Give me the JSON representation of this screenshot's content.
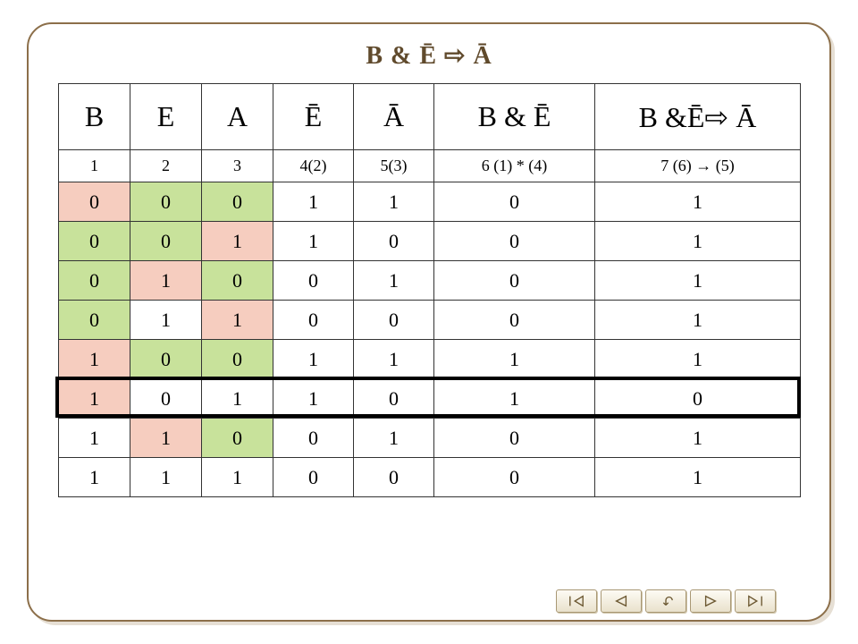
{
  "title": "B & Ē ⇨ Ā",
  "columns": {
    "headers": [
      "B",
      "E",
      "A",
      "Ē",
      "Ā",
      "B & Ē",
      "B &Ē⇨ Ā"
    ],
    "formulas": [
      "1",
      "2",
      "3",
      "4(2)",
      "5(3)",
      "6 (1) * (4)",
      "7 (6) → (5)"
    ]
  },
  "colors": {
    "frame_border": "#8c6f4a",
    "title_color": "#604a2c",
    "green": "#c8e29b",
    "red": "#f6cdbf",
    "grid": "#333333",
    "highlight_border": "#000000",
    "nav_fill": "#e9e1cc",
    "nav_border": "#a99875"
  },
  "rows": [
    {
      "cells": [
        "0",
        "0",
        "0",
        "1",
        "1",
        "0",
        "1"
      ],
      "hl": [
        "red",
        "green",
        "green",
        "",
        "",
        "",
        ""
      ]
    },
    {
      "cells": [
        "0",
        "0",
        "1",
        "1",
        "0",
        "0",
        "1"
      ],
      "hl": [
        "green",
        "green",
        "red",
        "",
        "",
        "",
        ""
      ]
    },
    {
      "cells": [
        "0",
        "1",
        "0",
        "0",
        "1",
        "0",
        "1"
      ],
      "hl": [
        "green",
        "red",
        "green",
        "",
        "",
        "",
        ""
      ]
    },
    {
      "cells": [
        "0",
        "1",
        "1",
        "0",
        "0",
        "0",
        "1"
      ],
      "hl": [
        "green",
        "",
        "red",
        "",
        "",
        "",
        ""
      ]
    },
    {
      "cells": [
        "1",
        "0",
        "0",
        "1",
        "1",
        "1",
        "1"
      ],
      "hl": [
        "red",
        "green",
        "green",
        "",
        "",
        "",
        ""
      ]
    },
    {
      "cells": [
        "1",
        "0",
        "1",
        "1",
        "0",
        "1",
        "0"
      ],
      "hl": [
        "red",
        "",
        "",
        "",
        "",
        "",
        ""
      ],
      "box": true
    },
    {
      "cells": [
        "1",
        "1",
        "0",
        "0",
        "1",
        "0",
        "1"
      ],
      "hl": [
        "",
        "red",
        "green",
        "",
        "",
        "",
        ""
      ]
    },
    {
      "cells": [
        "1",
        "1",
        "1",
        "0",
        "0",
        "0",
        "1"
      ],
      "hl": [
        "",
        "",
        "",
        "",
        "",
        "",
        ""
      ]
    }
  ],
  "nav_icons": [
    "first",
    "prev",
    "return",
    "next",
    "last"
  ]
}
